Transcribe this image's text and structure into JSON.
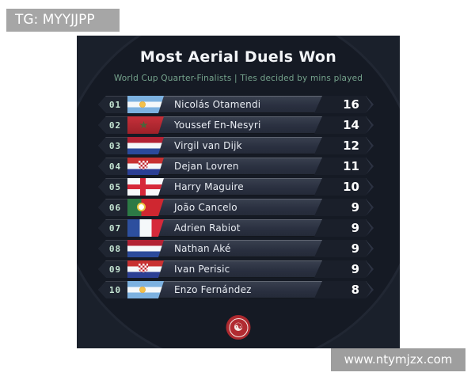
{
  "watermarks": {
    "tg_label": "TG: MYYJJPP",
    "website": "www.ntymjzx.com"
  },
  "card": {
    "title": "Most Aerial Duels Won",
    "subtitle": "World Cup Quarter-Finalists | Ties decided by mins played",
    "rows": [
      {
        "rank": "01",
        "flag": "argentina",
        "name": "Nicolás Otamendi",
        "value": "16"
      },
      {
        "rank": "02",
        "flag": "morocco",
        "name": "Youssef En-Nesyri",
        "value": "14"
      },
      {
        "rank": "03",
        "flag": "netherlands",
        "name": "Virgil van Dijk",
        "value": "12"
      },
      {
        "rank": "04",
        "flag": "croatia",
        "name": "Dejan Lovren",
        "value": "11"
      },
      {
        "rank": "05",
        "flag": "england",
        "name": "Harry Maguire",
        "value": "10"
      },
      {
        "rank": "06",
        "flag": "portugal",
        "name": "João Cancelo",
        "value": "9"
      },
      {
        "rank": "07",
        "flag": "france",
        "name": "Adrien Rabiot",
        "value": "9"
      },
      {
        "rank": "08",
        "flag": "netherlands",
        "name": "Nathan Aké",
        "value": "9"
      },
      {
        "rank": "09",
        "flag": "croatia",
        "name": "Ivan Perisic",
        "value": "9"
      },
      {
        "rank": "10",
        "flag": "argentina",
        "name": "Enzo Fernández",
        "value": "8"
      }
    ],
    "logo_icon": "yin-yang-swirl-icon",
    "logo_glyph": "☯"
  },
  "colors": {
    "card_background": "#1a202b",
    "circle_background": "#151a24",
    "row_body": "#2a3040",
    "value_chevron": "#1a1f2a",
    "accent_green": "#76a48d",
    "rank_mint": "#c6e6d4",
    "logo_red": "#a8262c",
    "watermark_gray": "#a6a6a6"
  },
  "chart_data": {
    "type": "table",
    "title": "Most Aerial Duels Won",
    "subtitle": "World Cup Quarter-Finalists | Ties decided by mins played",
    "columns": [
      "rank",
      "nationality",
      "player",
      "aerial_duels_won"
    ],
    "rows": [
      [
        1,
        "Argentina",
        "Nicolás Otamendi",
        16
      ],
      [
        2,
        "Morocco",
        "Youssef En-Nesyri",
        14
      ],
      [
        3,
        "Netherlands",
        "Virgil van Dijk",
        12
      ],
      [
        4,
        "Croatia",
        "Dejan Lovren",
        11
      ],
      [
        5,
        "England",
        "Harry Maguire",
        10
      ],
      [
        6,
        "Portugal",
        "João Cancelo",
        9
      ],
      [
        7,
        "France",
        "Adrien Rabiot",
        9
      ],
      [
        8,
        "Netherlands",
        "Nathan Aké",
        9
      ],
      [
        9,
        "Croatia",
        "Ivan Perisic",
        9
      ],
      [
        10,
        "Argentina",
        "Enzo Fernández",
        8
      ]
    ]
  }
}
